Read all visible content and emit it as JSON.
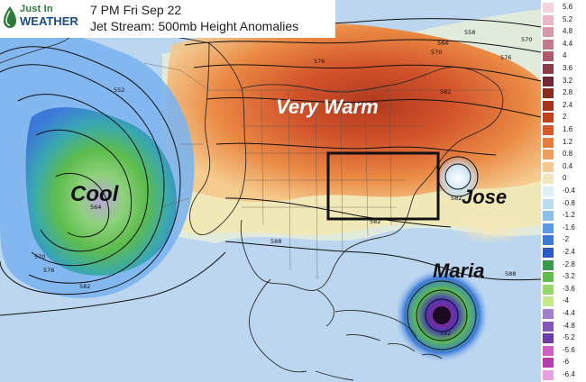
{
  "header": {
    "logo_line1": "Just In",
    "logo_line2": "WEATHER",
    "time_label": "7 PM Fri Sep 22",
    "product_label": "Jet Stream: 500mb Height Anomalies"
  },
  "labels": {
    "very_warm": "Very Warm",
    "cool": "Cool",
    "jose": "Jose",
    "maria": "Maria"
  },
  "contour_labels": [
    "552",
    "564",
    "570",
    "576",
    "582",
    "588",
    "558",
    "570",
    "576",
    "582",
    "564",
    "570",
    "576",
    "582",
    "582",
    "582",
    "588"
  ],
  "colors": {
    "highlight_box": "#111111",
    "very_warm_text": "#ffffff",
    "cool_text": "#111111",
    "storm_text": "#111111"
  },
  "colorbar": {
    "labels": [
      "5.6",
      "5.2",
      "4.8",
      "4.4",
      "4",
      "3.6",
      "3.2",
      "2.8",
      "2.4",
      "2",
      "1.6",
      "1.2",
      "0.8",
      "0.4",
      "0",
      "-0.4",
      "-0.8",
      "-1.2",
      "-1.6",
      "-2",
      "-2.4",
      "-2.8",
      "-3.2",
      "-3.6",
      "-4",
      "-4.4",
      "-4.8",
      "-5.2",
      "-5.6",
      "-6",
      "-6.4"
    ],
    "colors": [
      "#f5d5dd",
      "#e8b8c5",
      "#d89aa6",
      "#c47b88",
      "#ae5c6a",
      "#8e3c48",
      "#702832",
      "#8a2a1e",
      "#a8321c",
      "#c2421c",
      "#d8582a",
      "#e87a3c",
      "#f29e5c",
      "#f8c88c",
      "#f2e8c0",
      "#dff0f4",
      "#b8dcf0",
      "#8cc0ec",
      "#5c9ae4",
      "#3c78d8",
      "#2a5ccc",
      "#3a9a4c",
      "#62bc4c",
      "#9ad66a",
      "#c4e88c",
      "#a080cc",
      "#8458b8",
      "#6c3ca8",
      "#d060c8",
      "#b83cb0",
      "#e8a0e0"
    ]
  }
}
